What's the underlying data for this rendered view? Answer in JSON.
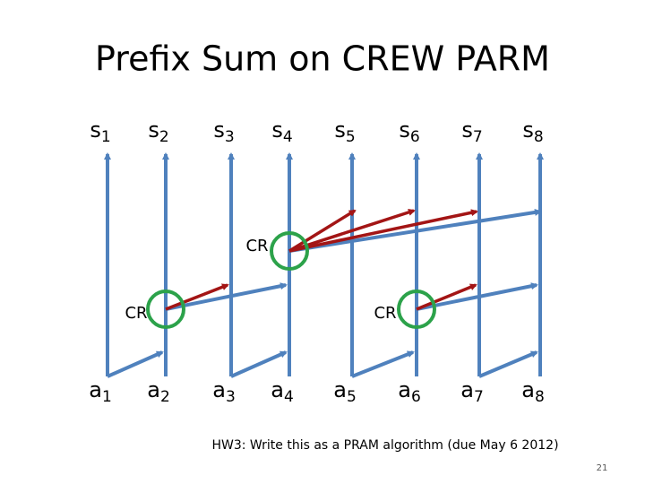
{
  "header": {
    "title": "Prefix Sum on CREW PARM"
  },
  "top_labels": [
    {
      "base": "s",
      "sub": "1"
    },
    {
      "base": "s",
      "sub": "2"
    },
    {
      "base": "s",
      "sub": "3"
    },
    {
      "base": "s",
      "sub": "4"
    },
    {
      "base": "s",
      "sub": "5"
    },
    {
      "base": "s",
      "sub": "6"
    },
    {
      "base": "s",
      "sub": "7"
    },
    {
      "base": "s",
      "sub": "8"
    }
  ],
  "bottom_labels": [
    {
      "base": "a",
      "sub": "1"
    },
    {
      "base": "a",
      "sub": "2"
    },
    {
      "base": "a",
      "sub": "3"
    },
    {
      "base": "a",
      "sub": "4"
    },
    {
      "base": "a",
      "sub": "5"
    },
    {
      "base": "a",
      "sub": "6"
    },
    {
      "base": "a",
      "sub": "7"
    },
    {
      "base": "a",
      "sub": "8"
    }
  ],
  "read_labels": [
    "CR",
    "CR",
    "CR"
  ],
  "footnote": "HW3: Write this as a PRAM algorithm (due May 6 2012)",
  "page_number": "21"
}
